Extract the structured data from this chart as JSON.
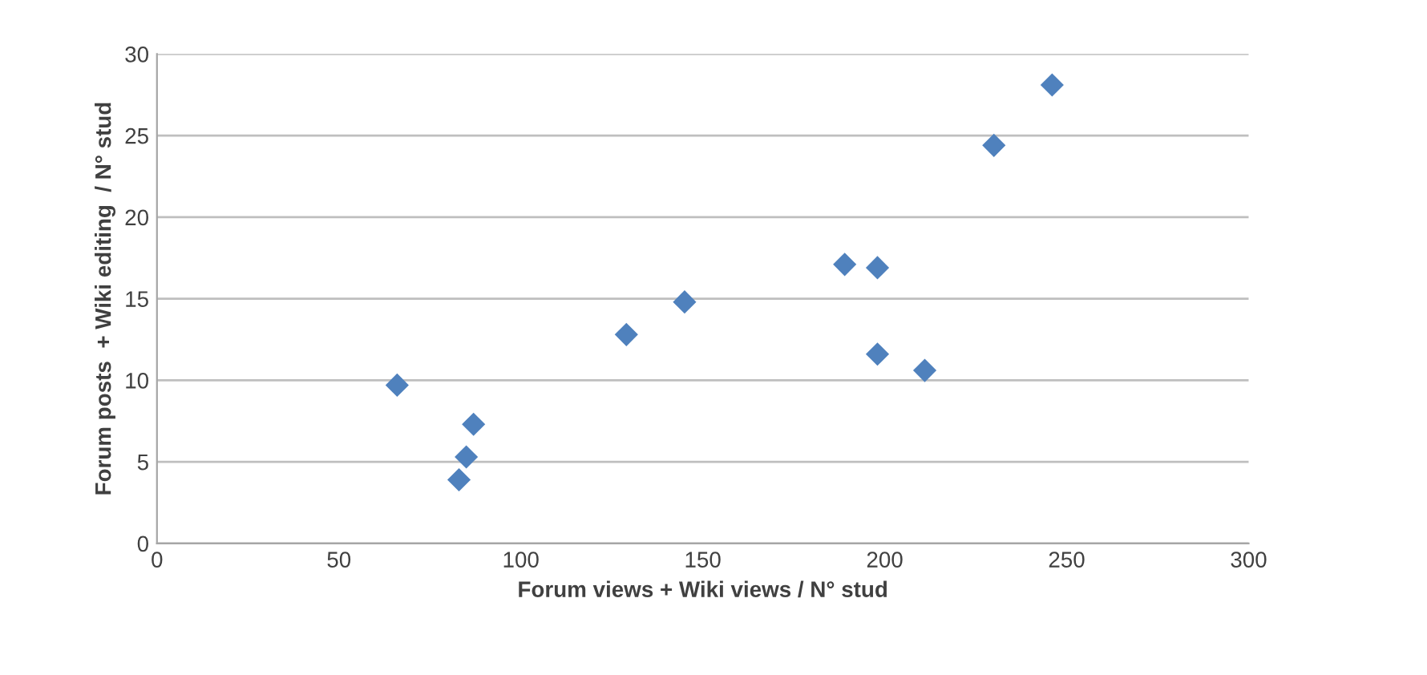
{
  "chart_data": {
    "type": "scatter",
    "xlabel": "Forum views + Wiki views / N° stud",
    "ylabel": "Forum posts  + Wiki editing  / N° stud",
    "x": [
      66,
      87,
      85,
      83,
      129,
      145,
      189,
      198,
      198,
      211,
      230,
      246
    ],
    "values": [
      9.7,
      7.3,
      5.3,
      3.9,
      12.8,
      14.8,
      17.1,
      16.9,
      11.6,
      10.6,
      24.4,
      28.1
    ],
    "color": "#4f81bd",
    "marker": "diamond",
    "xlim": [
      0,
      300
    ],
    "xticks": [
      0,
      50,
      100,
      150,
      200,
      250,
      300
    ],
    "ylim": [
      0,
      30
    ],
    "yticks": [
      0,
      5,
      10,
      15,
      20,
      25,
      30
    ],
    "grid": "y",
    "legend": false
  }
}
